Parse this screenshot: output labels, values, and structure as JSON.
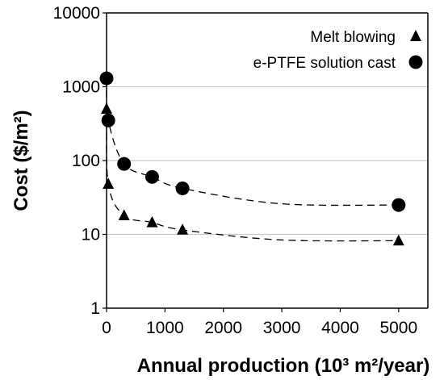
{
  "chart_data": {
    "type": "scatter",
    "xlabel": "Annual production (10³ m²/year)",
    "ylabel": "Cost ($/m²)",
    "xlim": [
      0,
      5500
    ],
    "ylim": [
      1,
      10000
    ],
    "yscale": "log",
    "grid": "horizontal",
    "legend_position": "top-right",
    "xticks": [
      "0",
      "1000",
      "2000",
      "3000",
      "4000",
      "5000"
    ],
    "yticks": [
      "1",
      "10",
      "100",
      "1000",
      "10000"
    ],
    "series": [
      {
        "name": "Melt blowing",
        "marker": "triangle",
        "color": "#000000",
        "points": [
          {
            "x": 0,
            "y": 500
          },
          {
            "x": 30,
            "y": 48
          },
          {
            "x": 300,
            "y": 18
          },
          {
            "x": 780,
            "y": 14.5
          },
          {
            "x": 1300,
            "y": 11.5
          },
          {
            "x": 5000,
            "y": 8.2
          }
        ]
      },
      {
        "name": "e-PTFE solution cast",
        "marker": "circle",
        "color": "#000000",
        "points": [
          {
            "x": 0,
            "y": 1300
          },
          {
            "x": 30,
            "y": 350
          },
          {
            "x": 300,
            "y": 90
          },
          {
            "x": 780,
            "y": 60
          },
          {
            "x": 1300,
            "y": 42
          },
          {
            "x": 5000,
            "y": 25
          }
        ]
      }
    ]
  }
}
